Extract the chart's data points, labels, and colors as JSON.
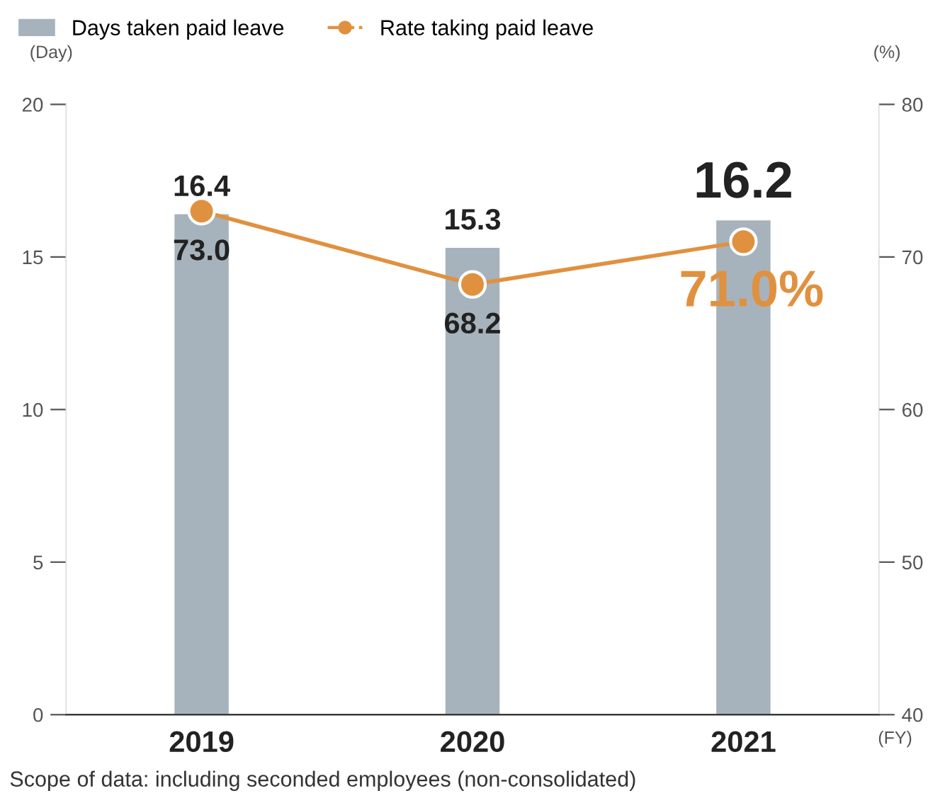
{
  "chart_data": {
    "type": "bar",
    "categories": [
      "2019",
      "2020",
      "2021"
    ],
    "ylabel": "(Day)",
    "y2label": "(%)",
    "xlabel": "(FY)",
    "ylim": [
      0,
      20
    ],
    "yticks": [
      0,
      5,
      10,
      15,
      20
    ],
    "y2lim": [
      40,
      80
    ],
    "y2ticks": [
      40,
      50,
      60,
      70,
      80
    ],
    "grid": false,
    "legend": "top left",
    "data_labels": true,
    "series": [
      {
        "name": "Days taken paid leave",
        "color": "#a7b3bc",
        "values": [
          16.4,
          15.3,
          16.2
        ]
      },
      {
        "name": "Rate taking paid leave",
        "type": "line",
        "axis": "y2",
        "color": "#e0913f",
        "marker": "circle",
        "line_style": "solid",
        "values": [
          73.0,
          68.2,
          71.0
        ],
        "value_labels": [
          "73.0",
          "68.2",
          "71.0%"
        ]
      }
    ],
    "annotations": [
      "Scope of data: including seconded employees (non-consolidated)"
    ]
  }
}
